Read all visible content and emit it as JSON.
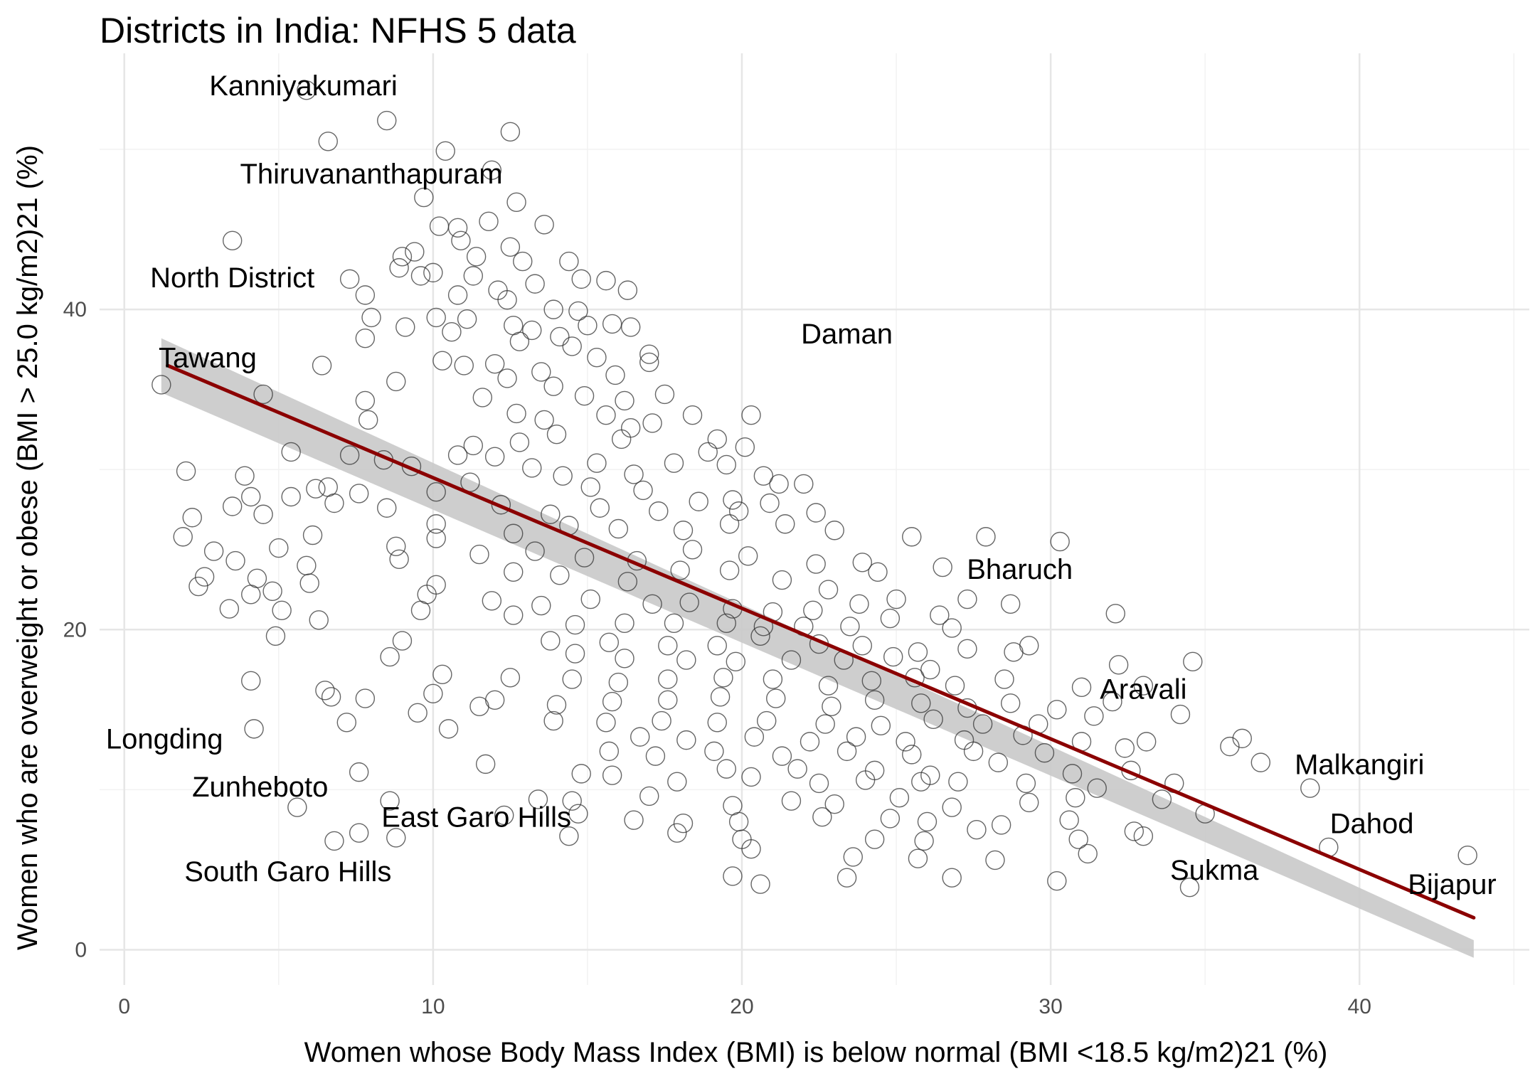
{
  "chart_data": {
    "type": "scatter",
    "title": "Districts in India: NFHS 5 data",
    "xlabel": "Women whose Body Mass Index (BMI) is below normal (BMI <18.5 kg/m2)21 (%)",
    "ylabel": "Women who are overweight or obese (BMI > 25.0 kg/m2)21 (%)",
    "xlim": [
      -0.8,
      45.5
    ],
    "ylim": [
      -2.2,
      56
    ],
    "x_ticks": [
      0,
      10,
      20,
      30,
      40
    ],
    "y_ticks": [
      0,
      20,
      40
    ],
    "grid": true,
    "legend": "none",
    "colors": {
      "point_stroke": "#333333",
      "trend_line": "#8b0000",
      "confidence_band": "#c9c9c9"
    },
    "trend_line": {
      "x": [
        1.4,
        43.7
      ],
      "y": [
        36.5,
        2.0
      ]
    },
    "confidence_band": {
      "x": [
        1.2,
        43.7
      ],
      "upper": [
        38.2,
        0.6
      ],
      "lower": [
        34.8,
        -0.5
      ]
    },
    "annotations": [
      {
        "text": "Kanniyakumari",
        "x": 5.8,
        "y": 54
      },
      {
        "text": "Thiruvananthapuram",
        "x": 8.0,
        "y": 48.5
      },
      {
        "text": "North  District",
        "x": 3.5,
        "y": 42
      },
      {
        "text": "Tawang",
        "x": 2.7,
        "y": 37
      },
      {
        "text": "Daman",
        "x": 23.4,
        "y": 38.5
      },
      {
        "text": "Bharuch",
        "x": 29.0,
        "y": 23.8
      },
      {
        "text": "Aravali",
        "x": 33.0,
        "y": 16.3
      },
      {
        "text": "Longding",
        "x": 1.3,
        "y": 13.2
      },
      {
        "text": "Malkangiri",
        "x": 40.0,
        "y": 11.6
      },
      {
        "text": "Zunheboto",
        "x": 4.4,
        "y": 10.2
      },
      {
        "text": "East Garo Hills",
        "x": 11.4,
        "y": 8.3
      },
      {
        "text": "Dahod",
        "x": 40.4,
        "y": 7.9
      },
      {
        "text": "South Garo Hills",
        "x": 5.3,
        "y": 4.9
      },
      {
        "text": "Sukma",
        "x": 35.3,
        "y": 5.0
      },
      {
        "text": "Bijapur",
        "x": 43.0,
        "y": 4.1
      }
    ],
    "points": [
      [
        1.2,
        35.3
      ],
      [
        5.9,
        53.7
      ],
      [
        8.5,
        51.8
      ],
      [
        6.6,
        50.5
      ],
      [
        12.5,
        51.1
      ],
      [
        10.4,
        49.9
      ],
      [
        11.9,
        48.7
      ],
      [
        3.5,
        44.3
      ],
      [
        9.7,
        47.0
      ],
      [
        12.7,
        46.7
      ],
      [
        10.2,
        45.2
      ],
      [
        10.8,
        45.1
      ],
      [
        11.8,
        45.5
      ],
      [
        13.6,
        45.3
      ],
      [
        9.0,
        43.3
      ],
      [
        9.4,
        43.6
      ],
      [
        10.9,
        44.3
      ],
      [
        11.4,
        43.3
      ],
      [
        12.5,
        43.9
      ],
      [
        12.9,
        43.0
      ],
      [
        14.4,
        43.0
      ],
      [
        8.9,
        42.6
      ],
      [
        10.0,
        42.3
      ],
      [
        11.3,
        42.1
      ],
      [
        14.8,
        41.9
      ],
      [
        15.6,
        41.8
      ],
      [
        7.3,
        41.9
      ],
      [
        9.6,
        42.1
      ],
      [
        12.1,
        41.2
      ],
      [
        13.3,
        41.6
      ],
      [
        16.3,
        41.2
      ],
      [
        7.8,
        40.9
      ],
      [
        10.8,
        40.9
      ],
      [
        12.4,
        40.6
      ],
      [
        13.9,
        40.0
      ],
      [
        14.7,
        39.9
      ],
      [
        15.0,
        39.0
      ],
      [
        15.8,
        39.1
      ],
      [
        8.0,
        39.5
      ],
      [
        9.1,
        38.9
      ],
      [
        10.1,
        39.5
      ],
      [
        11.1,
        39.4
      ],
      [
        12.6,
        39.0
      ],
      [
        13.2,
        38.7
      ],
      [
        14.1,
        38.3
      ],
      [
        16.4,
        38.9
      ],
      [
        7.8,
        38.2
      ],
      [
        10.6,
        38.6
      ],
      [
        12.8,
        38.0
      ],
      [
        14.5,
        37.7
      ],
      [
        15.3,
        37.0
      ],
      [
        17.0,
        37.2
      ],
      [
        6.4,
        36.5
      ],
      [
        10.3,
        36.8
      ],
      [
        12.0,
        36.6
      ],
      [
        13.5,
        36.1
      ],
      [
        15.9,
        35.9
      ],
      [
        17.0,
        36.7
      ],
      [
        8.8,
        35.5
      ],
      [
        11.0,
        36.5
      ],
      [
        12.4,
        35.7
      ],
      [
        13.9,
        35.2
      ],
      [
        14.9,
        34.6
      ],
      [
        16.2,
        34.3
      ],
      [
        17.5,
        34.7
      ],
      [
        4.5,
        34.7
      ],
      [
        7.8,
        34.3
      ],
      [
        11.6,
        34.5
      ],
      [
        12.7,
        33.5
      ],
      [
        13.6,
        33.1
      ],
      [
        15.6,
        33.4
      ],
      [
        16.4,
        32.6
      ],
      [
        18.4,
        33.4
      ],
      [
        19.2,
        31.9
      ],
      [
        20.3,
        33.4
      ],
      [
        7.9,
        33.1
      ],
      [
        11.3,
        31.5
      ],
      [
        12.8,
        31.7
      ],
      [
        14.0,
        32.2
      ],
      [
        16.1,
        31.9
      ],
      [
        17.1,
        32.9
      ],
      [
        18.9,
        31.1
      ],
      [
        20.1,
        31.4
      ],
      [
        8.4,
        30.6
      ],
      [
        10.8,
        30.9
      ],
      [
        12.0,
        30.8
      ],
      [
        13.2,
        30.1
      ],
      [
        15.3,
        30.4
      ],
      [
        16.5,
        29.7
      ],
      [
        17.8,
        30.4
      ],
      [
        19.5,
        30.3
      ],
      [
        20.7,
        29.6
      ],
      [
        5.4,
        31.1
      ],
      [
        7.3,
        30.9
      ],
      [
        9.3,
        30.2
      ],
      [
        3.9,
        29.6
      ],
      [
        6.6,
        28.9
      ],
      [
        7.6,
        28.5
      ],
      [
        10.1,
        28.6
      ],
      [
        11.2,
        29.2
      ],
      [
        14.2,
        29.6
      ],
      [
        15.1,
        28.9
      ],
      [
        16.8,
        28.7
      ],
      [
        18.6,
        28.0
      ],
      [
        19.7,
        28.1
      ],
      [
        21.2,
        29.1
      ],
      [
        22.0,
        29.1
      ],
      [
        2.0,
        29.9
      ],
      [
        4.1,
        28.3
      ],
      [
        5.4,
        28.3
      ],
      [
        6.2,
        28.8
      ],
      [
        8.5,
        27.6
      ],
      [
        12.2,
        27.8
      ],
      [
        13.8,
        27.2
      ],
      [
        15.4,
        27.6
      ],
      [
        17.3,
        27.4
      ],
      [
        19.9,
        27.4
      ],
      [
        20.9,
        27.9
      ],
      [
        22.4,
        27.3
      ],
      [
        2.2,
        27.0
      ],
      [
        3.5,
        27.7
      ],
      [
        4.5,
        27.2
      ],
      [
        6.8,
        27.9
      ],
      [
        10.1,
        26.6
      ],
      [
        12.6,
        26.0
      ],
      [
        14.4,
        26.5
      ],
      [
        16.0,
        26.3
      ],
      [
        18.1,
        26.2
      ],
      [
        19.6,
        26.6
      ],
      [
        21.4,
        26.6
      ],
      [
        23.0,
        26.2
      ],
      [
        1.9,
        25.8
      ],
      [
        2.9,
        24.9
      ],
      [
        5.0,
        25.1
      ],
      [
        6.1,
        25.9
      ],
      [
        8.8,
        25.2
      ],
      [
        10.1,
        25.7
      ],
      [
        11.5,
        24.7
      ],
      [
        13.3,
        24.9
      ],
      [
        14.9,
        24.5
      ],
      [
        16.6,
        24.3
      ],
      [
        18.4,
        25.0
      ],
      [
        20.2,
        24.6
      ],
      [
        22.4,
        24.1
      ],
      [
        23.9,
        24.2
      ],
      [
        25.5,
        25.8
      ],
      [
        27.9,
        25.8
      ],
      [
        30.3,
        25.5
      ],
      [
        2.6,
        23.3
      ],
      [
        3.6,
        24.3
      ],
      [
        4.3,
        23.2
      ],
      [
        5.9,
        24.0
      ],
      [
        8.9,
        24.4
      ],
      [
        10.1,
        22.8
      ],
      [
        12.6,
        23.6
      ],
      [
        14.1,
        23.4
      ],
      [
        16.3,
        23.0
      ],
      [
        18.0,
        23.7
      ],
      [
        19.6,
        23.7
      ],
      [
        21.3,
        23.1
      ],
      [
        22.8,
        22.5
      ],
      [
        24.4,
        23.6
      ],
      [
        26.5,
        23.9
      ],
      [
        27.3,
        21.9
      ],
      [
        2.4,
        22.7
      ],
      [
        4.1,
        22.2
      ],
      [
        4.8,
        22.4
      ],
      [
        6.0,
        22.9
      ],
      [
        9.8,
        22.2
      ],
      [
        11.9,
        21.8
      ],
      [
        13.5,
        21.5
      ],
      [
        15.1,
        21.9
      ],
      [
        17.1,
        21.6
      ],
      [
        18.3,
        21.7
      ],
      [
        19.7,
        21.3
      ],
      [
        21.0,
        21.1
      ],
      [
        22.3,
        21.2
      ],
      [
        23.8,
        21.6
      ],
      [
        25.0,
        21.9
      ],
      [
        26.4,
        20.9
      ],
      [
        3.4,
        21.3
      ],
      [
        5.1,
        21.2
      ],
      [
        6.3,
        20.6
      ],
      [
        9.6,
        21.2
      ],
      [
        12.6,
        20.9
      ],
      [
        14.6,
        20.3
      ],
      [
        16.2,
        20.4
      ],
      [
        17.8,
        20.4
      ],
      [
        19.5,
        20.4
      ],
      [
        20.7,
        20.2
      ],
      [
        22.0,
        20.2
      ],
      [
        23.5,
        20.2
      ],
      [
        24.8,
        20.7
      ],
      [
        26.8,
        20.1
      ],
      [
        28.7,
        21.6
      ],
      [
        32.1,
        21.0
      ],
      [
        4.9,
        19.6
      ],
      [
        9.0,
        19.3
      ],
      [
        13.8,
        19.3
      ],
      [
        15.7,
        19.2
      ],
      [
        17.6,
        19.0
      ],
      [
        19.2,
        19.0
      ],
      [
        20.6,
        19.6
      ],
      [
        22.5,
        19.1
      ],
      [
        23.9,
        19.0
      ],
      [
        25.7,
        18.6
      ],
      [
        27.3,
        18.8
      ],
      [
        29.3,
        19.0
      ],
      [
        8.6,
        18.3
      ],
      [
        14.6,
        18.5
      ],
      [
        16.2,
        18.2
      ],
      [
        18.2,
        18.1
      ],
      [
        19.8,
        18.0
      ],
      [
        21.6,
        18.1
      ],
      [
        23.3,
        18.1
      ],
      [
        24.9,
        18.3
      ],
      [
        26.1,
        17.5
      ],
      [
        28.8,
        18.6
      ],
      [
        32.2,
        17.8
      ],
      [
        34.6,
        18.0
      ],
      [
        4.1,
        16.8
      ],
      [
        6.5,
        16.2
      ],
      [
        10.3,
        17.2
      ],
      [
        12.5,
        17.0
      ],
      [
        14.5,
        16.9
      ],
      [
        16.0,
        16.7
      ],
      [
        17.6,
        16.9
      ],
      [
        19.4,
        17.0
      ],
      [
        21.0,
        16.9
      ],
      [
        22.8,
        16.5
      ],
      [
        24.2,
        16.8
      ],
      [
        25.6,
        17.0
      ],
      [
        26.9,
        16.5
      ],
      [
        28.5,
        16.9
      ],
      [
        31.0,
        16.4
      ],
      [
        33.0,
        16.5
      ],
      [
        6.7,
        15.8
      ],
      [
        10.0,
        16.0
      ],
      [
        12.0,
        15.6
      ],
      [
        14.0,
        15.3
      ],
      [
        15.8,
        15.5
      ],
      [
        17.6,
        15.6
      ],
      [
        19.3,
        15.8
      ],
      [
        21.1,
        15.7
      ],
      [
        22.9,
        15.2
      ],
      [
        24.3,
        15.6
      ],
      [
        25.8,
        15.4
      ],
      [
        27.3,
        15.1
      ],
      [
        28.7,
        15.4
      ],
      [
        30.2,
        15.0
      ],
      [
        32.0,
        15.5
      ],
      [
        34.2,
        14.7
      ],
      [
        7.8,
        15.7
      ],
      [
        9.5,
        14.8
      ],
      [
        11.5,
        15.2
      ],
      [
        13.9,
        14.3
      ],
      [
        15.6,
        14.2
      ],
      [
        17.4,
        14.3
      ],
      [
        19.2,
        14.2
      ],
      [
        20.8,
        14.3
      ],
      [
        22.7,
        14.1
      ],
      [
        24.5,
        14.0
      ],
      [
        26.2,
        14.4
      ],
      [
        27.8,
        14.1
      ],
      [
        29.6,
        14.1
      ],
      [
        31.4,
        14.6
      ],
      [
        4.2,
        13.8
      ],
      [
        7.2,
        14.2
      ],
      [
        10.5,
        13.8
      ],
      [
        16.7,
        13.3
      ],
      [
        18.2,
        13.1
      ],
      [
        20.4,
        13.3
      ],
      [
        22.2,
        13.0
      ],
      [
        23.7,
        13.3
      ],
      [
        25.3,
        13.0
      ],
      [
        27.2,
        13.1
      ],
      [
        29.1,
        13.4
      ],
      [
        31.0,
        13.0
      ],
      [
        33.1,
        13.0
      ],
      [
        35.8,
        12.7
      ],
      [
        36.2,
        13.2
      ],
      [
        15.7,
        12.4
      ],
      [
        17.2,
        12.1
      ],
      [
        19.1,
        12.4
      ],
      [
        21.3,
        12.1
      ],
      [
        23.4,
        12.4
      ],
      [
        25.5,
        12.2
      ],
      [
        27.5,
        12.4
      ],
      [
        29.8,
        12.3
      ],
      [
        32.4,
        12.6
      ],
      [
        11.7,
        11.6
      ],
      [
        15.8,
        10.9
      ],
      [
        19.5,
        11.3
      ],
      [
        21.8,
        11.3
      ],
      [
        24.3,
        11.2
      ],
      [
        26.1,
        10.9
      ],
      [
        28.3,
        11.7
      ],
      [
        30.7,
        11.0
      ],
      [
        32.6,
        11.2
      ],
      [
        36.8,
        11.7
      ],
      [
        7.6,
        11.1
      ],
      [
        14.8,
        11.0
      ],
      [
        17.9,
        10.5
      ],
      [
        20.3,
        10.8
      ],
      [
        22.5,
        10.4
      ],
      [
        24.0,
        10.6
      ],
      [
        25.8,
        10.5
      ],
      [
        27.0,
        10.5
      ],
      [
        29.2,
        10.4
      ],
      [
        31.5,
        10.1
      ],
      [
        34.0,
        10.4
      ],
      [
        38.4,
        10.1
      ],
      [
        8.6,
        9.3
      ],
      [
        13.4,
        9.4
      ],
      [
        14.5,
        9.3
      ],
      [
        17.0,
        9.6
      ],
      [
        19.7,
        9.0
      ],
      [
        21.6,
        9.3
      ],
      [
        23.0,
        9.1
      ],
      [
        25.1,
        9.5
      ],
      [
        26.8,
        8.9
      ],
      [
        29.3,
        9.2
      ],
      [
        30.8,
        9.5
      ],
      [
        33.6,
        9.4
      ],
      [
        5.6,
        8.9
      ],
      [
        12.3,
        8.4
      ],
      [
        14.7,
        8.5
      ],
      [
        16.5,
        8.1
      ],
      [
        18.1,
        7.9
      ],
      [
        19.9,
        8.0
      ],
      [
        22.6,
        8.3
      ],
      [
        24.8,
        8.2
      ],
      [
        26.0,
        8.0
      ],
      [
        28.4,
        7.8
      ],
      [
        30.6,
        8.1
      ],
      [
        32.7,
        7.4
      ],
      [
        35.0,
        8.5
      ],
      [
        7.6,
        7.3
      ],
      [
        8.8,
        7.0
      ],
      [
        14.4,
        7.1
      ],
      [
        17.9,
        7.3
      ],
      [
        20.0,
        6.9
      ],
      [
        24.3,
        6.9
      ],
      [
        25.9,
        6.8
      ],
      [
        27.6,
        7.5
      ],
      [
        30.9,
        6.9
      ],
      [
        33.0,
        7.1
      ],
      [
        6.8,
        6.8
      ],
      [
        20.3,
        6.3
      ],
      [
        23.6,
        5.8
      ],
      [
        25.7,
        5.7
      ],
      [
        28.2,
        5.6
      ],
      [
        31.2,
        6.0
      ],
      [
        39.0,
        6.4
      ],
      [
        43.5,
        5.9
      ],
      [
        19.7,
        4.6
      ],
      [
        23.4,
        4.5
      ],
      [
        26.8,
        4.5
      ],
      [
        30.2,
        4.3
      ],
      [
        20.6,
        4.1
      ],
      [
        34.5,
        3.9
      ]
    ]
  }
}
